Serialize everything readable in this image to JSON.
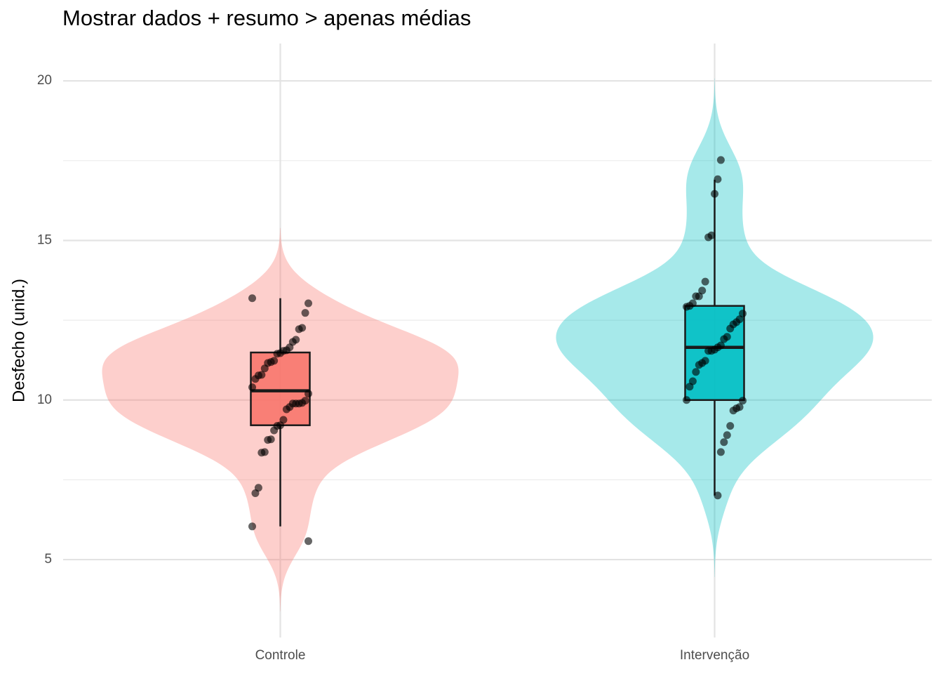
{
  "chart_data": {
    "type": "violin",
    "title": "Mostrar dados + resumo > apenas médias",
    "y_label": "Desfecho (unid.)",
    "categories": [
      "Controle",
      "Intervenção"
    ],
    "ylim": [
      2.56,
      21.17
    ],
    "yticks": [
      5,
      10,
      15,
      20
    ],
    "y_minor_grid": [
      7.5,
      12.5,
      17.5
    ],
    "grid": true,
    "groups": [
      {
        "color": "#F8766D",
        "box": {
          "whisker_low": 6.04,
          "q1": 9.21,
          "median": 10.29,
          "q3": 11.49,
          "whisker_high": 13.19
        },
        "values": [
          13.19,
          13.03,
          12.73,
          12.26,
          12.22,
          11.89,
          11.82,
          11.65,
          11.56,
          11.54,
          11.47,
          11.45,
          11.23,
          11.19,
          11.16,
          10.99,
          10.79,
          10.77,
          10.66,
          10.4,
          10.2,
          9.98,
          9.91,
          9.89,
          9.89,
          9.89,
          9.78,
          9.71,
          9.38,
          9.21,
          9.19,
          9.05,
          8.77,
          8.75,
          8.37,
          8.35,
          7.25,
          7.08,
          6.04,
          5.58
        ]
      },
      {
        "color": "#00BFC4",
        "box": {
          "whisker_low": 7.01,
          "q1": 10.0,
          "median": 11.65,
          "q3": 12.95,
          "whisker_high": 16.9
        },
        "values": [
          17.52,
          16.92,
          16.46,
          15.16,
          15.1,
          13.71,
          13.43,
          13.25,
          13.25,
          13.03,
          12.95,
          12.92,
          12.71,
          12.53,
          12.44,
          12.37,
          12.24,
          11.98,
          11.91,
          11.71,
          11.65,
          11.58,
          11.54,
          11.54,
          11.23,
          11.16,
          11.1,
          10.88,
          10.59,
          10.42,
          10.0,
          9.98,
          9.78,
          9.74,
          9.67,
          9.19,
          8.9,
          8.68,
          8.37,
          7.01
        ]
      }
    ]
  }
}
